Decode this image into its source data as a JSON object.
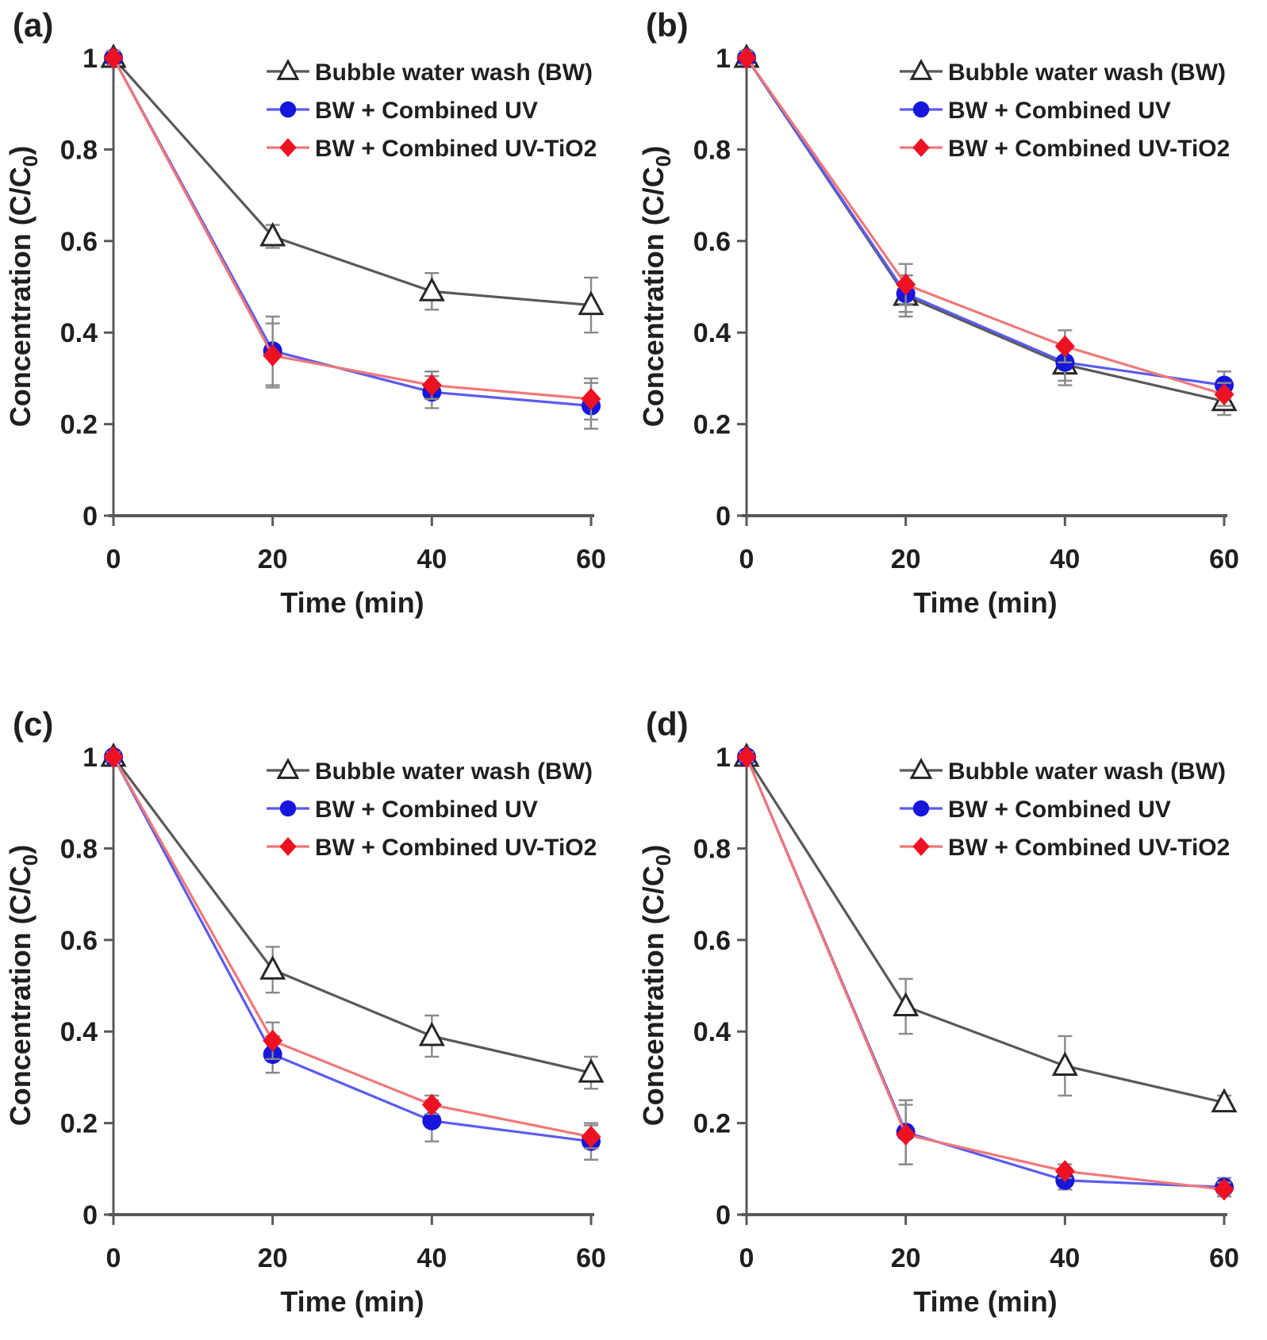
{
  "figure": {
    "panels": [
      {
        "label": "(a)"
      },
      {
        "label": "(b)"
      },
      {
        "label": "(c)"
      },
      {
        "label": "(d)"
      }
    ],
    "xlabel": "Time (min)",
    "ylabel_prefix": "Concentration (C/C",
    "ylabel_sub": "0",
    "ylabel_suffix": ")"
  },
  "style": {
    "axis_color": "#595959",
    "tick_color": "#595959",
    "error_bar_color": "#8a8a8a",
    "text_color": "#1f1f1f",
    "background": "#ffffff"
  },
  "chart_data": [
    {
      "type": "line",
      "panel": "(a)",
      "title": "",
      "xlabel": "Time (min)",
      "ylabel": "Concentration (C/C0)",
      "xlim": [
        0,
        60
      ],
      "ylim": [
        0,
        1
      ],
      "grid": false,
      "legend_position": "top-right",
      "x": [
        0,
        20,
        40,
        60
      ],
      "xticks": [
        0,
        20,
        40,
        60
      ],
      "yticks": [
        0,
        0.2,
        0.4,
        0.6,
        0.8,
        1
      ],
      "ytick_labels": [
        "0",
        "0.2",
        "0.4",
        "0.6",
        "0.8",
        "1"
      ],
      "series": [
        {
          "name": "Bubble water wash (BW)",
          "marker": "triangle-open",
          "line_color": "#595959",
          "color": "#262626",
          "values": [
            1.0,
            0.61,
            0.49,
            0.46
          ],
          "errors": [
            0.015,
            0.025,
            0.04,
            0.06
          ]
        },
        {
          "name": "BW + Combined UV",
          "marker": "circle",
          "line_color": "#5b5bf0",
          "color": "#1616dd",
          "values": [
            1.0,
            0.36,
            0.27,
            0.24
          ],
          "errors": [
            0.015,
            0.075,
            0.035,
            0.05
          ]
        },
        {
          "name": "BW + Combined UV-TiO2",
          "marker": "diamond",
          "line_color": "#f07878",
          "color": "#ee1122",
          "values": [
            1.0,
            0.35,
            0.285,
            0.255
          ],
          "errors": [
            0.015,
            0.07,
            0.03,
            0.045
          ]
        }
      ]
    },
    {
      "type": "line",
      "panel": "(b)",
      "title": "",
      "xlabel": "Time (min)",
      "ylabel": "Concentration (C/C0)",
      "xlim": [
        0,
        60
      ],
      "ylim": [
        0,
        1
      ],
      "grid": false,
      "legend_position": "top-right",
      "x": [
        0,
        20,
        40,
        60
      ],
      "xticks": [
        0,
        20,
        40,
        60
      ],
      "yticks": [
        0,
        0.2,
        0.4,
        0.6,
        0.8,
        1
      ],
      "ytick_labels": [
        "0",
        "0.2",
        "0.4",
        "0.6",
        "0.8",
        "1"
      ],
      "series": [
        {
          "name": "Bubble water wash (BW)",
          "marker": "triangle-open",
          "line_color": "#595959",
          "color": "#262626",
          "values": [
            1.0,
            0.48,
            0.33,
            0.25
          ],
          "errors": [
            0.015,
            0.045,
            0.045,
            0.03
          ]
        },
        {
          "name": "BW + Combined UV",
          "marker": "circle",
          "line_color": "#5b5bf0",
          "color": "#1616dd",
          "values": [
            1.0,
            0.485,
            0.335,
            0.285
          ],
          "errors": [
            0.015,
            0.04,
            0.04,
            0.03
          ]
        },
        {
          "name": "BW + Combined UV-TiO2",
          "marker": "diamond",
          "line_color": "#f07878",
          "color": "#ee1122",
          "values": [
            1.0,
            0.505,
            0.37,
            0.265
          ],
          "errors": [
            0.015,
            0.045,
            0.035,
            0.025
          ]
        }
      ]
    },
    {
      "type": "line",
      "panel": "(c)",
      "title": "",
      "xlabel": "Time (min)",
      "ylabel": "Concentration (C/C0)",
      "xlim": [
        0,
        60
      ],
      "ylim": [
        0,
        1
      ],
      "grid": false,
      "legend_position": "top-right",
      "x": [
        0,
        20,
        40,
        60
      ],
      "xticks": [
        0,
        20,
        40,
        60
      ],
      "yticks": [
        0,
        0.2,
        0.4,
        0.6,
        0.8,
        1
      ],
      "ytick_labels": [
        "0",
        "0.2",
        "0.4",
        "0.6",
        "0.8",
        "1"
      ],
      "series": [
        {
          "name": "Bubble water wash (BW)",
          "marker": "triangle-open",
          "line_color": "#595959",
          "color": "#262626",
          "values": [
            1.0,
            0.535,
            0.39,
            0.31
          ],
          "errors": [
            0.01,
            0.05,
            0.045,
            0.035
          ]
        },
        {
          "name": "BW + Combined UV",
          "marker": "circle",
          "line_color": "#5b5bf0",
          "color": "#1616dd",
          "values": [
            1.0,
            0.35,
            0.205,
            0.16
          ],
          "errors": [
            0.01,
            0.04,
            0.045,
            0.04
          ]
        },
        {
          "name": "BW + Combined UV-TiO2",
          "marker": "diamond",
          "line_color": "#f07878",
          "color": "#ee1122",
          "values": [
            1.0,
            0.38,
            0.24,
            0.17
          ],
          "errors": [
            0.01,
            0.04,
            0.02,
            0.025
          ]
        }
      ]
    },
    {
      "type": "line",
      "panel": "(d)",
      "title": "",
      "xlabel": "Time (min)",
      "ylabel": "Concentration (C/C0)",
      "xlim": [
        0,
        60
      ],
      "ylim": [
        0,
        1
      ],
      "grid": false,
      "legend_position": "top-right",
      "x": [
        0,
        20,
        40,
        60
      ],
      "xticks": [
        0,
        20,
        40,
        60
      ],
      "yticks": [
        0,
        0.2,
        0.4,
        0.6,
        0.8,
        1
      ],
      "ytick_labels": [
        "0",
        "0.2",
        "0.4",
        "0.6",
        "0.8",
        "1"
      ],
      "series": [
        {
          "name": "Bubble water wash (BW)",
          "marker": "triangle-open",
          "line_color": "#595959",
          "color": "#262626",
          "values": [
            1.0,
            0.455,
            0.325,
            0.245
          ],
          "errors": [
            0.01,
            0.06,
            0.065,
            0.015
          ]
        },
        {
          "name": "BW + Combined UV",
          "marker": "circle",
          "line_color": "#5b5bf0",
          "color": "#1616dd",
          "values": [
            1.0,
            0.18,
            0.075,
            0.06
          ],
          "errors": [
            0.01,
            0.07,
            0.02,
            0.02
          ]
        },
        {
          "name": "BW + Combined UV-TiO2",
          "marker": "diamond",
          "line_color": "#f07878",
          "color": "#ee1122",
          "values": [
            1.0,
            0.175,
            0.095,
            0.055
          ],
          "errors": [
            0.01,
            0.065,
            0.015,
            0.015
          ]
        }
      ]
    }
  ]
}
